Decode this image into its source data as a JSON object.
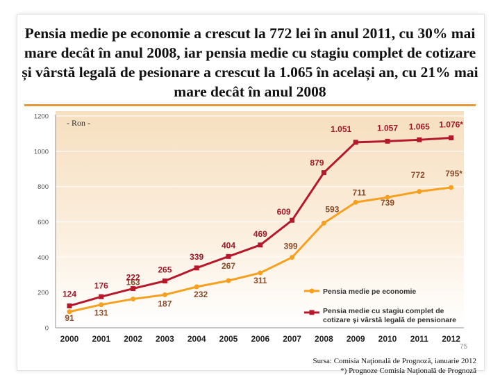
{
  "title": "Pensia medie pe economie a crescut la 772 lei în anul 2011, cu 30% mai mare decât în anul 2008, iar pensia medie cu stagiu complet de cotizare și vârstă legală de pesionare a crescut la 1.065 în același an, cu 21% mai mare decât în anul 2008",
  "page_number": "75",
  "source": "Sursa: Comisia Naţională de Prognoză, ianuarie 2012",
  "footnote": "*) Prognoze Comisia Naţională de Prognoză",
  "colors": {
    "background_top": "#f6dfbf",
    "background_bottom": "#ffffff",
    "series_red": "#b5182a",
    "series_orange": "#f7a01e"
  },
  "chart_data": {
    "type": "line",
    "unit_label": "- Ron -",
    "x": [
      "2000",
      "2001",
      "2002",
      "2003",
      "2004",
      "2005",
      "2006",
      "2007",
      "2008",
      "2009",
      "2010",
      "2011",
      "2012"
    ],
    "y_ticks": [
      "0",
      "200",
      "400",
      "600",
      "800",
      "1000",
      "1200"
    ],
    "ylim": [
      0,
      1200
    ],
    "legend_position": "bottom-right",
    "series": [
      {
        "name": "Pensia medie pe economie",
        "color": "#f7a01e",
        "marker": "circle",
        "values": [
          91,
          131,
          163,
          187,
          232,
          267,
          311,
          399,
          593,
          711,
          739,
          772,
          795
        ],
        "labels": [
          "91",
          "131",
          "163",
          "187",
          "232",
          "267",
          "311",
          "399",
          "593",
          "711",
          "739",
          "772",
          "795*"
        ]
      },
      {
        "name": "Pensia medie cu stagiu complet de cotizare și vârstă legală de pensionare",
        "color": "#b5182a",
        "marker": "square",
        "values": [
          124,
          176,
          222,
          265,
          339,
          404,
          469,
          609,
          879,
          1051,
          1057,
          1065,
          1076
        ],
        "labels": [
          "124",
          "176",
          "222",
          "265",
          "339",
          "404",
          "469",
          "609",
          "879",
          "1.051",
          "1.057",
          "1.065",
          "1.076*"
        ]
      }
    ]
  }
}
